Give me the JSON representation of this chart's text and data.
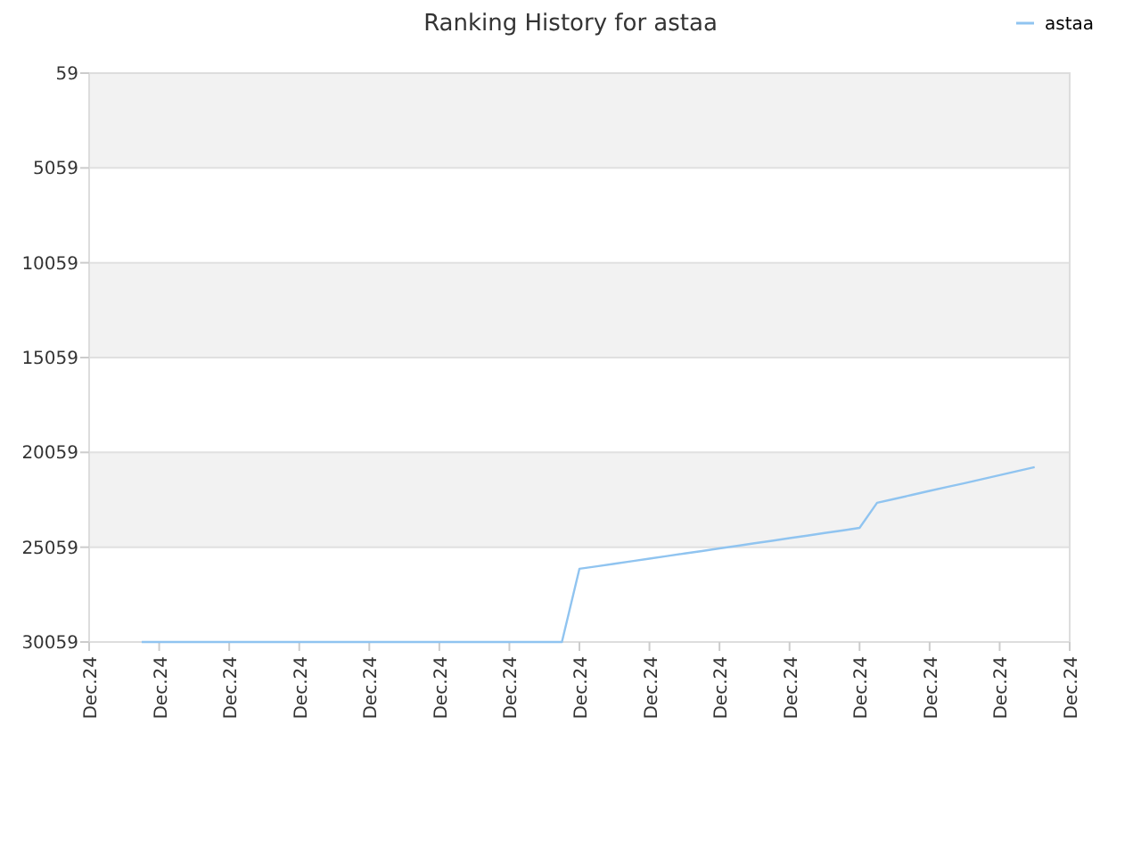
{
  "chart_data": {
    "type": "line",
    "title": "Ranking History for astaa",
    "categories": [
      "Dec.24",
      null,
      null,
      null,
      "Dec.24",
      null,
      null,
      null,
      "Dec.24",
      null,
      null,
      null,
      "Dec.24",
      null,
      null,
      null,
      "Dec.24",
      null,
      null,
      null,
      "Dec.24",
      null,
      null,
      null,
      "Dec.24",
      null,
      null,
      null,
      "Dec.24",
      null,
      null,
      null,
      "Dec.24",
      null,
      null,
      null,
      "Dec.24",
      null,
      null,
      null,
      "Dec.24",
      null,
      null,
      null,
      "Dec.24",
      null,
      null,
      null,
      "Dec.24",
      null,
      null,
      null,
      "Dec.24",
      null,
      null,
      null,
      "Dec.24"
    ],
    "series": [
      {
        "name": "astaa",
        "color": "#90c4f0",
        "values": [
          null,
          null,
          null,
          30059,
          30059,
          30059,
          30059,
          30059,
          30059,
          30059,
          30059,
          30059,
          30059,
          30059,
          30059,
          30059,
          30059,
          30059,
          30059,
          30059,
          30059,
          30059,
          30059,
          30059,
          30059,
          30059,
          30059,
          30059,
          26200,
          26070,
          25930,
          25800,
          25660,
          25530,
          25390,
          25260,
          25120,
          24990,
          24850,
          24720,
          24580,
          24450,
          24310,
          24180,
          24040,
          22720,
          22510,
          22300,
          22090,
          21880,
          21680,
          21470,
          21260,
          21050,
          20840,
          null,
          null
        ]
      }
    ],
    "ylim": [
      30059,
      59
    ],
    "yticks": [
      59,
      5059,
      10059,
      15059,
      20059,
      25059,
      30059
    ],
    "grid": "y",
    "legend": "top right",
    "marker": "none",
    "line_style": "solid"
  }
}
